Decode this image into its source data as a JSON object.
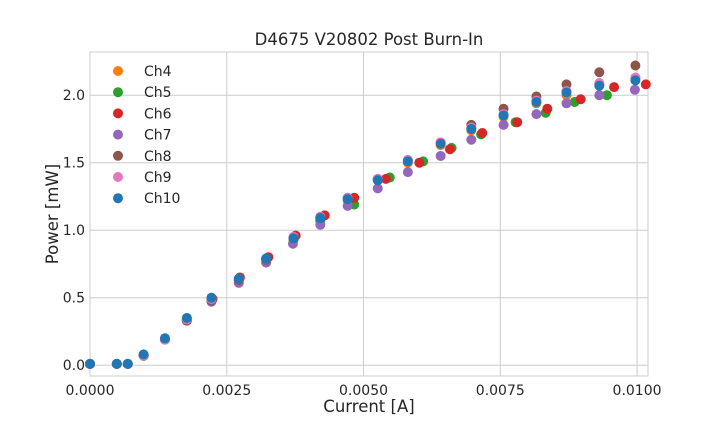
{
  "chart_data": {
    "type": "scatter",
    "title": "D4675 V20802 Post Burn-In",
    "xlabel": "Current [A]",
    "ylabel": "Power [mW]",
    "xlim": [
      0.0,
      0.0102
    ],
    "ylim": [
      -0.08,
      2.32
    ],
    "xticks": [
      0.0,
      0.0025,
      0.005,
      0.0075,
      0.01
    ],
    "xtick_labels": [
      "0.0000",
      "0.0025",
      "0.0050",
      "0.0075",
      "0.0100"
    ],
    "yticks": [
      0.0,
      0.5,
      1.0,
      1.5,
      2.0
    ],
    "ytick_labels": [
      "0.0",
      "0.5",
      "1.0",
      "1.5",
      "2.0"
    ],
    "grid": true,
    "legend_position": "top-left",
    "series": [
      {
        "name": "Ch4",
        "color": "#ff7f0e",
        "x": [
          0.0,
          0.00049,
          0.00069,
          0.00098,
          0.00137,
          0.00177,
          0.00222,
          0.00272,
          0.00322,
          0.00372,
          0.00421,
          0.00471,
          0.00526,
          0.00581,
          0.00641,
          0.00697,
          0.00756,
          0.00816,
          0.00871,
          0.00931,
          0.00997
        ],
        "y": [
          0.01,
          0.01,
          0.01,
          0.07,
          0.19,
          0.33,
          0.48,
          0.63,
          0.78,
          0.93,
          1.08,
          1.22,
          1.37,
          1.5,
          1.63,
          1.74,
          1.84,
          1.94,
          2.0,
          2.08,
          2.13
        ]
      },
      {
        "name": "Ch5",
        "color": "#2ca02c",
        "x": [
          0.0,
          0.00049,
          0.00069,
          0.00098,
          0.00137,
          0.00177,
          0.00222,
          0.00272,
          0.00322,
          0.00372,
          0.00421,
          0.00483,
          0.00548,
          0.00609,
          0.00661,
          0.00715,
          0.00778,
          0.00833,
          0.00886,
          0.00945
        ],
        "y": [
          0.01,
          0.01,
          0.01,
          0.07,
          0.19,
          0.33,
          0.48,
          0.63,
          0.78,
          0.93,
          1.07,
          1.19,
          1.39,
          1.51,
          1.61,
          1.71,
          1.8,
          1.87,
          1.95,
          2.0
        ]
      },
      {
        "name": "Ch6",
        "color": "#d62728",
        "x": [
          0.0,
          0.00049,
          0.00069,
          0.00098,
          0.00137,
          0.00177,
          0.00224,
          0.00274,
          0.00326,
          0.00376,
          0.00429,
          0.00483,
          0.00541,
          0.00602,
          0.00658,
          0.00717,
          0.00781,
          0.00836,
          0.00897,
          0.00958,
          0.01016
        ],
        "y": [
          0.01,
          0.01,
          0.01,
          0.07,
          0.19,
          0.34,
          0.49,
          0.65,
          0.8,
          0.96,
          1.11,
          1.24,
          1.38,
          1.5,
          1.6,
          1.72,
          1.8,
          1.9,
          1.97,
          2.06,
          2.08
        ]
      },
      {
        "name": "Ch7",
        "color": "#9467bd",
        "x": [
          0.0,
          0.00049,
          0.00069,
          0.00098,
          0.00137,
          0.00177,
          0.00222,
          0.00272,
          0.00322,
          0.00371,
          0.00421,
          0.00471,
          0.00526,
          0.00581,
          0.00641,
          0.00697,
          0.00756,
          0.00816,
          0.00871,
          0.00931,
          0.00996
        ],
        "y": [
          0.01,
          0.01,
          0.01,
          0.07,
          0.19,
          0.33,
          0.47,
          0.61,
          0.76,
          0.9,
          1.04,
          1.18,
          1.31,
          1.43,
          1.55,
          1.67,
          1.78,
          1.86,
          1.94,
          2.0,
          2.04
        ]
      },
      {
        "name": "Ch8",
        "color": "#8c564b",
        "x": [
          0.0,
          0.00049,
          0.00069,
          0.00098,
          0.00137,
          0.00177,
          0.00222,
          0.00272,
          0.00322,
          0.00372,
          0.00421,
          0.00471,
          0.00526,
          0.00581,
          0.00641,
          0.00697,
          0.00756,
          0.00816,
          0.00871,
          0.00931,
          0.00997
        ],
        "y": [
          0.01,
          0.01,
          0.01,
          0.07,
          0.19,
          0.33,
          0.48,
          0.63,
          0.78,
          0.94,
          1.09,
          1.24,
          1.38,
          1.52,
          1.65,
          1.78,
          1.9,
          1.99,
          2.08,
          2.17,
          2.22
        ]
      },
      {
        "name": "Ch9",
        "color": "#e377c2",
        "x": [
          0.0,
          0.00049,
          0.00069,
          0.00098,
          0.00137,
          0.00177,
          0.00222,
          0.00272,
          0.00322,
          0.00372,
          0.00421,
          0.00471,
          0.00526,
          0.00581,
          0.00641,
          0.00697,
          0.00756,
          0.00816,
          0.00871,
          0.00931,
          0.00997
        ],
        "y": [
          0.01,
          0.01,
          0.01,
          0.07,
          0.19,
          0.34,
          0.49,
          0.64,
          0.79,
          0.95,
          1.1,
          1.24,
          1.38,
          1.52,
          1.65,
          1.76,
          1.86,
          1.96,
          2.03,
          2.09,
          2.13
        ]
      },
      {
        "name": "Ch10",
        "color": "#1f77b4",
        "x": [
          0.0,
          0.00049,
          0.00069,
          0.00098,
          0.00137,
          0.00177,
          0.00222,
          0.00272,
          0.00322,
          0.00372,
          0.00421,
          0.00471,
          0.00526,
          0.00581,
          0.00641,
          0.00697,
          0.00756,
          0.00816,
          0.00871,
          0.00931,
          0.00997
        ],
        "y": [
          0.01,
          0.01,
          0.01,
          0.08,
          0.2,
          0.35,
          0.5,
          0.64,
          0.79,
          0.94,
          1.09,
          1.23,
          1.37,
          1.51,
          1.64,
          1.75,
          1.85,
          1.95,
          2.02,
          2.07,
          2.11
        ]
      }
    ]
  }
}
